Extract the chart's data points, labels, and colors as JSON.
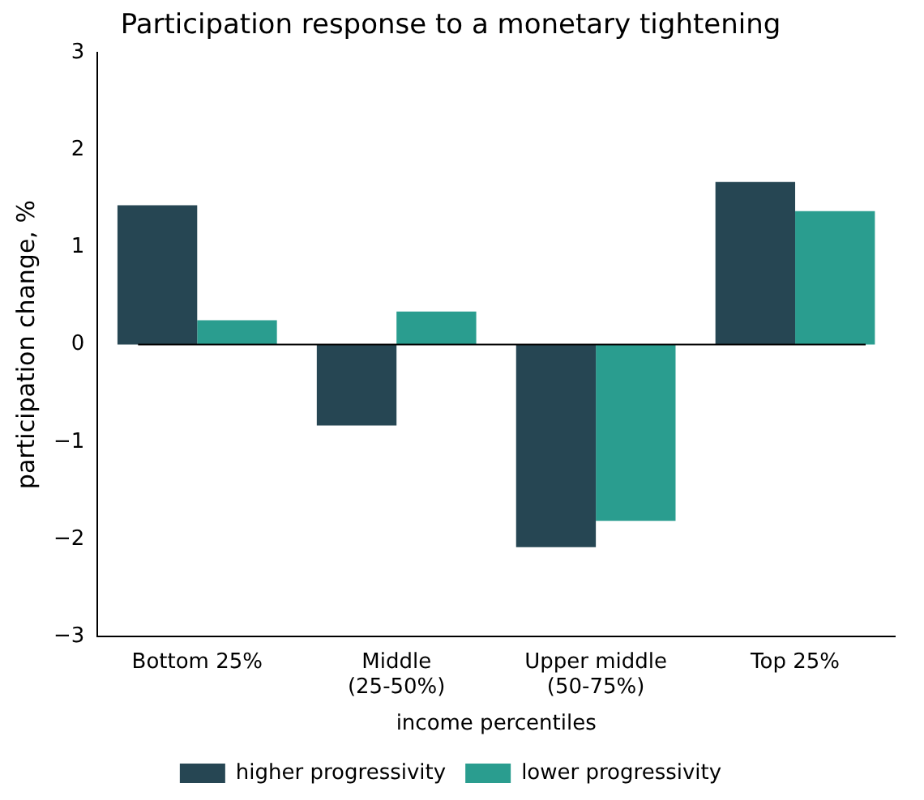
{
  "chart_data": {
    "type": "bar",
    "title": "Participation response to a monetary tightening",
    "xlabel": "income percentiles",
    "ylabel": "participation change, %",
    "categories": [
      "Bottom 25%",
      "Middle\n(25-50%)",
      "Upper middle\n(50-75%)",
      "Top 25%"
    ],
    "series": [
      {
        "name": "higher progressivity",
        "color": "#264653",
        "values": [
          1.43,
          -0.83,
          -2.08,
          1.67
        ]
      },
      {
        "name": "lower progressivity",
        "color": "#2a9d8f",
        "values": [
          0.25,
          0.34,
          -1.81,
          1.37
        ]
      }
    ],
    "ylim": [
      -3,
      3
    ],
    "yticks": [
      {
        "value": -3,
        "label": "−3"
      },
      {
        "value": -2,
        "label": "−2"
      },
      {
        "value": -1,
        "label": "−1"
      },
      0,
      1,
      2,
      3
    ],
    "ref_lines": [
      {
        "axis": "y",
        "value": 0,
        "color": "#000000"
      }
    ],
    "grid": false,
    "legend": "bottom"
  }
}
